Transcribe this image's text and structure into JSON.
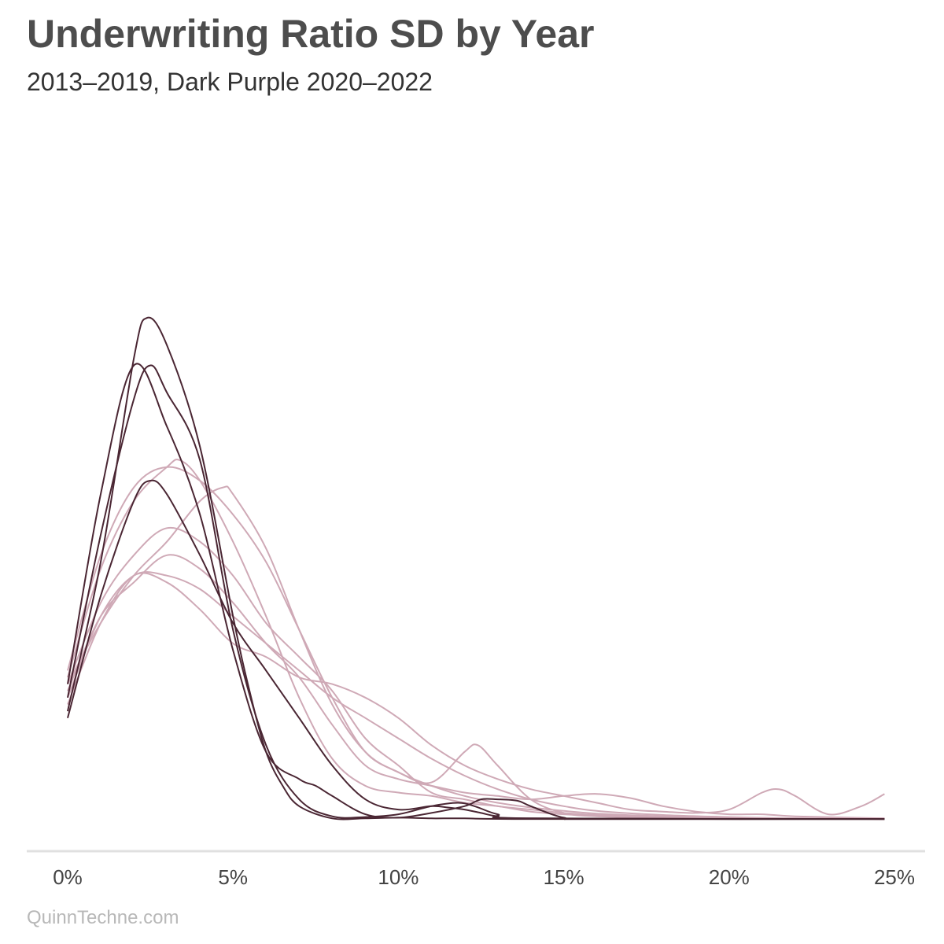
{
  "title": "Underwriting Ratio SD by Year",
  "subtitle": "2013–2019, Dark Purple 2020–2022",
  "caption": "QuinnTechne.com",
  "colors": {
    "light": "#cfa9b6",
    "dark": "#4a2633",
    "axis": "#e0e0e0"
  },
  "chart_data": {
    "type": "line",
    "xlabel": "",
    "ylabel": "",
    "xlim": [
      0,
      25
    ],
    "ylim": [
      0,
      1.0
    ],
    "x_ticks": [
      "0%",
      "5%",
      "10%",
      "15%",
      "20%",
      "25%"
    ],
    "x_tick_values": [
      0,
      5,
      10,
      15,
      20,
      25
    ],
    "grid": false,
    "series": [
      {
        "group": "2013–2019",
        "color": "light",
        "points": [
          [
            0,
            0.2
          ],
          [
            1,
            0.32
          ],
          [
            2,
            0.39
          ],
          [
            3,
            0.43
          ],
          [
            4,
            0.41
          ],
          [
            5,
            0.36
          ],
          [
            6,
            0.29
          ],
          [
            7,
            0.24
          ],
          [
            8,
            0.19
          ],
          [
            9,
            0.12
          ],
          [
            10,
            0.08
          ],
          [
            11,
            0.04
          ],
          [
            12,
            0.03
          ],
          [
            13,
            0.02
          ],
          [
            14,
            0.015
          ],
          [
            15,
            0.01
          ],
          [
            16,
            0.007
          ],
          [
            18,
            0.004
          ],
          [
            20,
            0.003
          ],
          [
            22,
            0.002
          ],
          [
            24.7,
            0.002
          ]
        ]
      },
      {
        "group": "2013–2019",
        "color": "light",
        "points": [
          [
            0,
            0.19
          ],
          [
            1,
            0.3
          ],
          [
            2,
            0.35
          ],
          [
            3,
            0.39
          ],
          [
            4,
            0.37
          ],
          [
            5,
            0.32
          ],
          [
            6,
            0.26
          ],
          [
            7,
            0.21
          ],
          [
            8,
            0.14
          ],
          [
            9,
            0.08
          ],
          [
            10,
            0.06
          ],
          [
            11,
            0.05
          ],
          [
            12,
            0.04
          ],
          [
            13,
            0.035
          ],
          [
            14,
            0.03
          ],
          [
            15,
            0.035
          ],
          [
            16,
            0.038
          ],
          [
            17,
            0.032
          ],
          [
            18,
            0.02
          ],
          [
            19,
            0.012
          ],
          [
            20,
            0.008
          ],
          [
            21,
            0.008
          ],
          [
            22,
            0.005
          ],
          [
            24.7,
            0.002
          ]
        ]
      },
      {
        "group": "2013–2019",
        "color": "light",
        "points": [
          [
            0,
            0.18
          ],
          [
            1,
            0.3
          ],
          [
            2,
            0.36
          ],
          [
            3,
            0.36
          ],
          [
            4,
            0.34
          ],
          [
            5,
            0.3
          ],
          [
            6,
            0.26
          ],
          [
            7,
            0.22
          ],
          [
            8,
            0.18
          ],
          [
            9,
            0.15
          ],
          [
            10,
            0.12
          ],
          [
            11,
            0.09
          ],
          [
            12,
            0.065
          ],
          [
            13,
            0.045
          ],
          [
            14,
            0.03
          ],
          [
            15,
            0.02
          ],
          [
            16,
            0.013
          ],
          [
            18,
            0.007
          ],
          [
            20,
            0.004
          ],
          [
            22,
            0.002
          ],
          [
            24.7,
            0.001
          ]
        ]
      },
      {
        "group": "2013–2019",
        "color": "light",
        "points": [
          [
            0,
            0.17
          ],
          [
            1,
            0.29
          ],
          [
            2,
            0.36
          ],
          [
            3,
            0.35
          ],
          [
            4,
            0.31
          ],
          [
            5,
            0.26
          ],
          [
            6,
            0.24
          ],
          [
            7,
            0.21
          ],
          [
            8,
            0.2
          ],
          [
            9,
            0.18
          ],
          [
            10,
            0.15
          ],
          [
            11,
            0.11
          ],
          [
            12,
            0.08
          ],
          [
            13,
            0.06
          ],
          [
            14,
            0.045
          ],
          [
            15,
            0.035
          ],
          [
            16,
            0.025
          ],
          [
            17,
            0.015
          ],
          [
            18,
            0.012
          ],
          [
            19,
            0.01
          ],
          [
            20,
            0.015
          ],
          [
            21,
            0.04
          ],
          [
            21.5,
            0.045
          ],
          [
            22,
            0.035
          ],
          [
            23,
            0.008
          ],
          [
            24,
            0.02
          ],
          [
            24.7,
            0.038
          ]
        ]
      },
      {
        "group": "2013–2019",
        "color": "light",
        "points": [
          [
            0,
            0.22
          ],
          [
            1,
            0.39
          ],
          [
            2,
            0.49
          ],
          [
            3,
            0.52
          ],
          [
            4,
            0.5
          ],
          [
            5,
            0.45
          ],
          [
            6,
            0.38
          ],
          [
            7,
            0.28
          ],
          [
            8,
            0.18
          ],
          [
            9,
            0.1
          ],
          [
            10,
            0.07
          ],
          [
            11,
            0.05
          ],
          [
            12,
            0.035
          ],
          [
            13,
            0.025
          ],
          [
            14,
            0.018
          ],
          [
            15,
            0.013
          ],
          [
            16,
            0.009
          ],
          [
            18,
            0.005
          ],
          [
            20,
            0.003
          ],
          [
            22,
            0.002
          ],
          [
            24.7,
            0.001
          ]
        ]
      },
      {
        "group": "2013–2019",
        "color": "light",
        "points": [
          [
            0,
            0.21
          ],
          [
            1,
            0.37
          ],
          [
            2,
            0.47
          ],
          [
            3,
            0.52
          ],
          [
            3.4,
            0.53
          ],
          [
            4,
            0.5
          ],
          [
            5,
            0.41
          ],
          [
            6,
            0.3
          ],
          [
            7,
            0.18
          ],
          [
            8,
            0.09
          ],
          [
            9,
            0.05
          ],
          [
            10,
            0.04
          ],
          [
            11,
            0.035
          ],
          [
            12,
            0.025
          ],
          [
            13,
            0.02
          ],
          [
            14,
            0.012
          ],
          [
            15,
            0.008
          ],
          [
            16,
            0.006
          ],
          [
            18,
            0.004
          ],
          [
            20,
            0.003
          ],
          [
            22,
            0.002
          ],
          [
            24.7,
            0.001
          ]
        ]
      },
      {
        "group": "2013–2019",
        "color": "light",
        "points": [
          [
            0,
            0.2
          ],
          [
            1,
            0.29
          ],
          [
            2,
            0.36
          ],
          [
            3,
            0.41
          ],
          [
            4,
            0.47
          ],
          [
            4.7,
            0.49
          ],
          [
            5,
            0.48
          ],
          [
            6,
            0.4
          ],
          [
            7,
            0.28
          ],
          [
            8,
            0.17
          ],
          [
            9,
            0.1
          ],
          [
            10,
            0.07
          ],
          [
            11,
            0.055
          ],
          [
            12,
            0.1
          ],
          [
            12.4,
            0.11
          ],
          [
            13,
            0.08
          ],
          [
            14,
            0.03
          ],
          [
            15,
            0.01
          ],
          [
            16,
            0.005
          ],
          [
            18,
            0.003
          ],
          [
            20,
            0.002
          ],
          [
            24.7,
            0.001
          ]
        ]
      },
      {
        "group": "2020–2022",
        "color": "dark",
        "points": [
          [
            0,
            0.16
          ],
          [
            1,
            0.38
          ],
          [
            2,
            0.68
          ],
          [
            2.4,
            0.74
          ],
          [
            3,
            0.7
          ],
          [
            4,
            0.55
          ],
          [
            5,
            0.3
          ],
          [
            5.5,
            0.19
          ],
          [
            6,
            0.1
          ],
          [
            6.5,
            0.05
          ],
          [
            7,
            0.02
          ],
          [
            8,
            0.002
          ],
          [
            9,
            0.002
          ],
          [
            10,
            0.003
          ],
          [
            11,
            0.002
          ],
          [
            12,
            0.002
          ],
          [
            14,
            0.001
          ],
          [
            24.7,
            0.001
          ]
        ]
      },
      {
        "group": "2020–2022",
        "color": "dark",
        "points": [
          [
            0,
            0.2
          ],
          [
            1,
            0.48
          ],
          [
            2,
            0.67
          ],
          [
            3,
            0.58
          ],
          [
            4,
            0.45
          ],
          [
            5,
            0.25
          ],
          [
            6,
            0.1
          ],
          [
            7,
            0.06
          ],
          [
            7.5,
            0.05
          ],
          [
            8,
            0.035
          ],
          [
            9,
            0.008
          ],
          [
            10,
            0.003
          ],
          [
            11,
            0.01
          ],
          [
            12,
            0.02
          ],
          [
            12.5,
            0.03
          ],
          [
            13,
            0.03
          ],
          [
            13.6,
            0.028
          ],
          [
            14,
            0.02
          ],
          [
            15,
            0.003
          ],
          [
            16,
            0.001
          ],
          [
            24.7,
            0.001
          ]
        ]
      },
      {
        "group": "2020–2022",
        "color": "dark",
        "points": [
          [
            0,
            0.15
          ],
          [
            1,
            0.33
          ],
          [
            2,
            0.47
          ],
          [
            2.5,
            0.5
          ],
          [
            3,
            0.48
          ],
          [
            4,
            0.39
          ],
          [
            5,
            0.29
          ],
          [
            6,
            0.22
          ],
          [
            7,
            0.15
          ],
          [
            8,
            0.08
          ],
          [
            9,
            0.03
          ],
          [
            10,
            0.015
          ],
          [
            11,
            0.02
          ],
          [
            11.5,
            0.018
          ],
          [
            12,
            0.015
          ],
          [
            12.5,
            0.01
          ],
          [
            13,
            0.005
          ],
          [
            14,
            0.002
          ],
          [
            24.7,
            0.001
          ]
        ]
      },
      {
        "group": "2020–2022",
        "color": "dark",
        "points": [
          [
            0,
            0.18
          ],
          [
            1,
            0.42
          ],
          [
            2,
            0.62
          ],
          [
            2.5,
            0.67
          ],
          [
            3,
            0.63
          ],
          [
            4,
            0.53
          ],
          [
            5,
            0.28
          ],
          [
            6,
            0.11
          ],
          [
            7,
            0.03
          ],
          [
            8,
            0.005
          ],
          [
            9,
            0.004
          ],
          [
            10,
            0.008
          ],
          [
            11,
            0.02
          ],
          [
            11.8,
            0.025
          ],
          [
            12.3,
            0.02
          ],
          [
            13,
            0.008
          ],
          [
            14,
            0.002
          ],
          [
            24.7,
            0.001
          ]
        ]
      }
    ]
  }
}
